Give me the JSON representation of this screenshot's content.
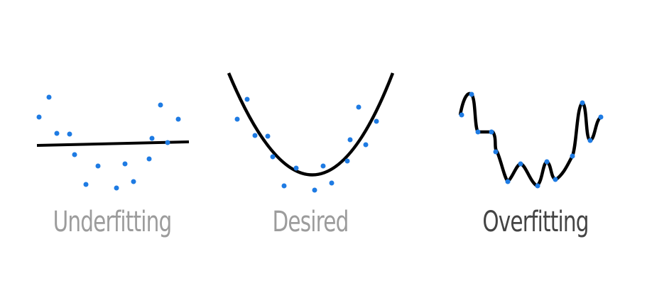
{
  "colors": {
    "curve": "#000000",
    "point": "#1e7be3",
    "label_muted": "#9c9c9c",
    "label_strong": "#444444"
  },
  "panels": [
    {
      "label": "Underfitting"
    },
    {
      "label": "Desired"
    },
    {
      "label": "Overfitting"
    }
  ]
}
